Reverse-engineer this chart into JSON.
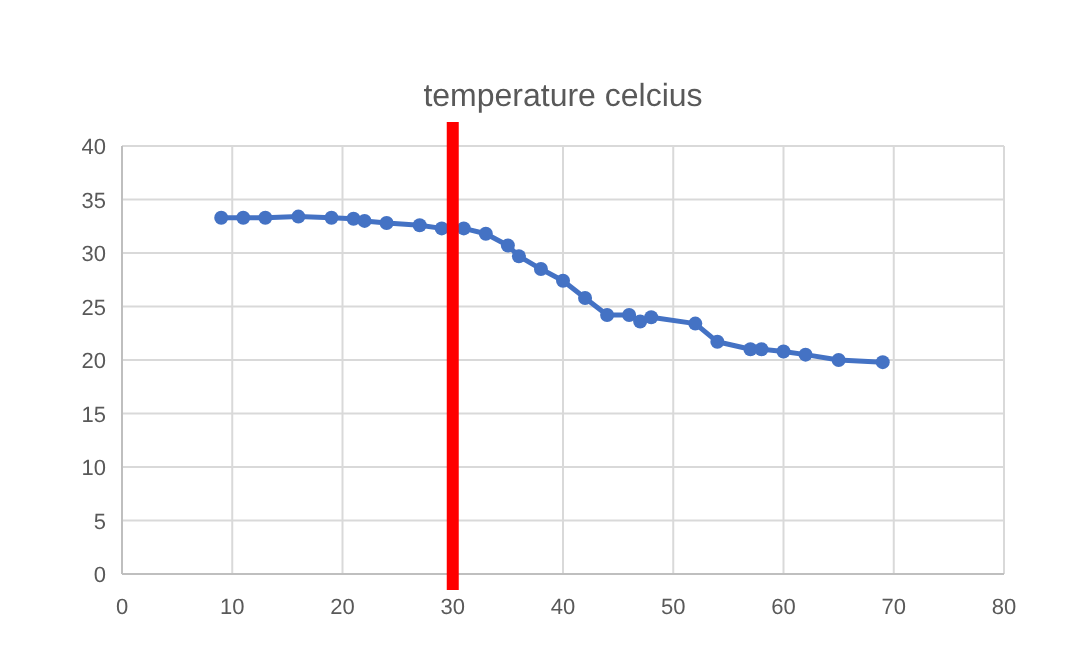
{
  "chart_data": {
    "type": "line",
    "title": "temperature celcius",
    "x": [
      9,
      11,
      13,
      16,
      19,
      21,
      22,
      24,
      27,
      29,
      31,
      33,
      35,
      36,
      38,
      40,
      42,
      44,
      46,
      47,
      48,
      52,
      54,
      57,
      58,
      60,
      62,
      65,
      69
    ],
    "series": [
      {
        "color": "#4472c4",
        "values": [
          33.3,
          33.3,
          33.3,
          33.4,
          33.3,
          33.2,
          33.0,
          32.8,
          32.6,
          32.3,
          32.3,
          31.8,
          30.7,
          29.7,
          28.5,
          27.4,
          25.8,
          24.2,
          24.2,
          23.6,
          24.0,
          23.4,
          21.7,
          21.0,
          21.0,
          20.8,
          20.5,
          20.0,
          19.8
        ]
      }
    ],
    "xlim": [
      0,
      80
    ],
    "xticks": [
      0,
      10,
      20,
      30,
      40,
      50,
      60,
      70,
      80
    ],
    "ylim": [
      0,
      40
    ],
    "yticks": [
      0,
      5,
      10,
      15,
      20,
      25,
      30,
      35,
      40
    ],
    "grid": true,
    "marker": "circle",
    "line_style": "solid",
    "ref_lines": [
      {
        "axis": "x",
        "value": 30,
        "color": "#ff0000"
      }
    ]
  }
}
